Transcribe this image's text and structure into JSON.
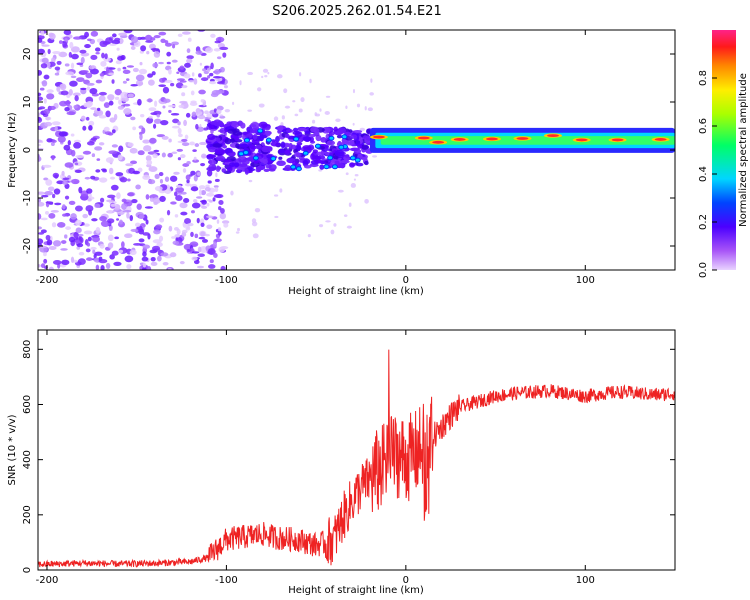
{
  "title": "S206.2025.262.01.54.E21",
  "chart_data": [
    {
      "type": "heatmap",
      "name": "spectrogram",
      "xlabel": "Height of straight line (km)",
      "ylabel": "Frequency (Hz)",
      "xlim": [
        -205,
        150
      ],
      "ylim": [
        -25,
        25
      ],
      "xticks": [
        -200,
        -100,
        0,
        100
      ],
      "yticks": [
        -20,
        -10,
        0,
        10,
        20
      ],
      "colorbar": {
        "label": "Normalized spectral amplitude",
        "range": [
          0.0,
          1.0
        ],
        "ticks": [
          "0.0",
          "0.2",
          "0.4",
          "0.6",
          "0.8"
        ]
      },
      "features": [
        {
          "region": "broadband noise (purple speckle)",
          "x_range": [
            -205,
            -110
          ],
          "freq_range": [
            -25,
            25
          ],
          "amplitude": 0.1
        },
        {
          "region": "transition cluster",
          "x_range": [
            -110,
            -20
          ],
          "freq_range": [
            -6,
            6
          ],
          "amplitude": 0.25
        },
        {
          "region": "narrow carrier line",
          "x_range": [
            -20,
            150
          ],
          "center_freq": 2,
          "amplitude": 0.9
        }
      ]
    },
    {
      "type": "line",
      "name": "snr",
      "xlabel": "Height of straight line (km)",
      "ylabel": "SNR (10 * v/v)",
      "xlim": [
        -205,
        150
      ],
      "ylim": [
        0,
        870
      ],
      "xticks": [
        -200,
        -100,
        0,
        100
      ],
      "yticks": [
        0,
        200,
        400,
        600,
        800
      ],
      "color": "#ee2222",
      "x": [
        -205,
        -180,
        -160,
        -140,
        -120,
        -110,
        -100,
        -90,
        -80,
        -70,
        -60,
        -50,
        -40,
        -35,
        -30,
        -25,
        -20,
        -15,
        -10,
        -5,
        0,
        5,
        10,
        15,
        20,
        25,
        30,
        40,
        50,
        60,
        70,
        80,
        90,
        100,
        110,
        120,
        130,
        140,
        150
      ],
      "y": [
        20,
        25,
        22,
        24,
        30,
        45,
        110,
        120,
        130,
        115,
        110,
        90,
        110,
        190,
        250,
        300,
        330,
        360,
        390,
        420,
        400,
        420,
        450,
        480,
        520,
        560,
        590,
        610,
        630,
        640,
        645,
        650,
        640,
        630,
        640,
        645,
        640,
        635,
        640
      ]
    }
  ]
}
